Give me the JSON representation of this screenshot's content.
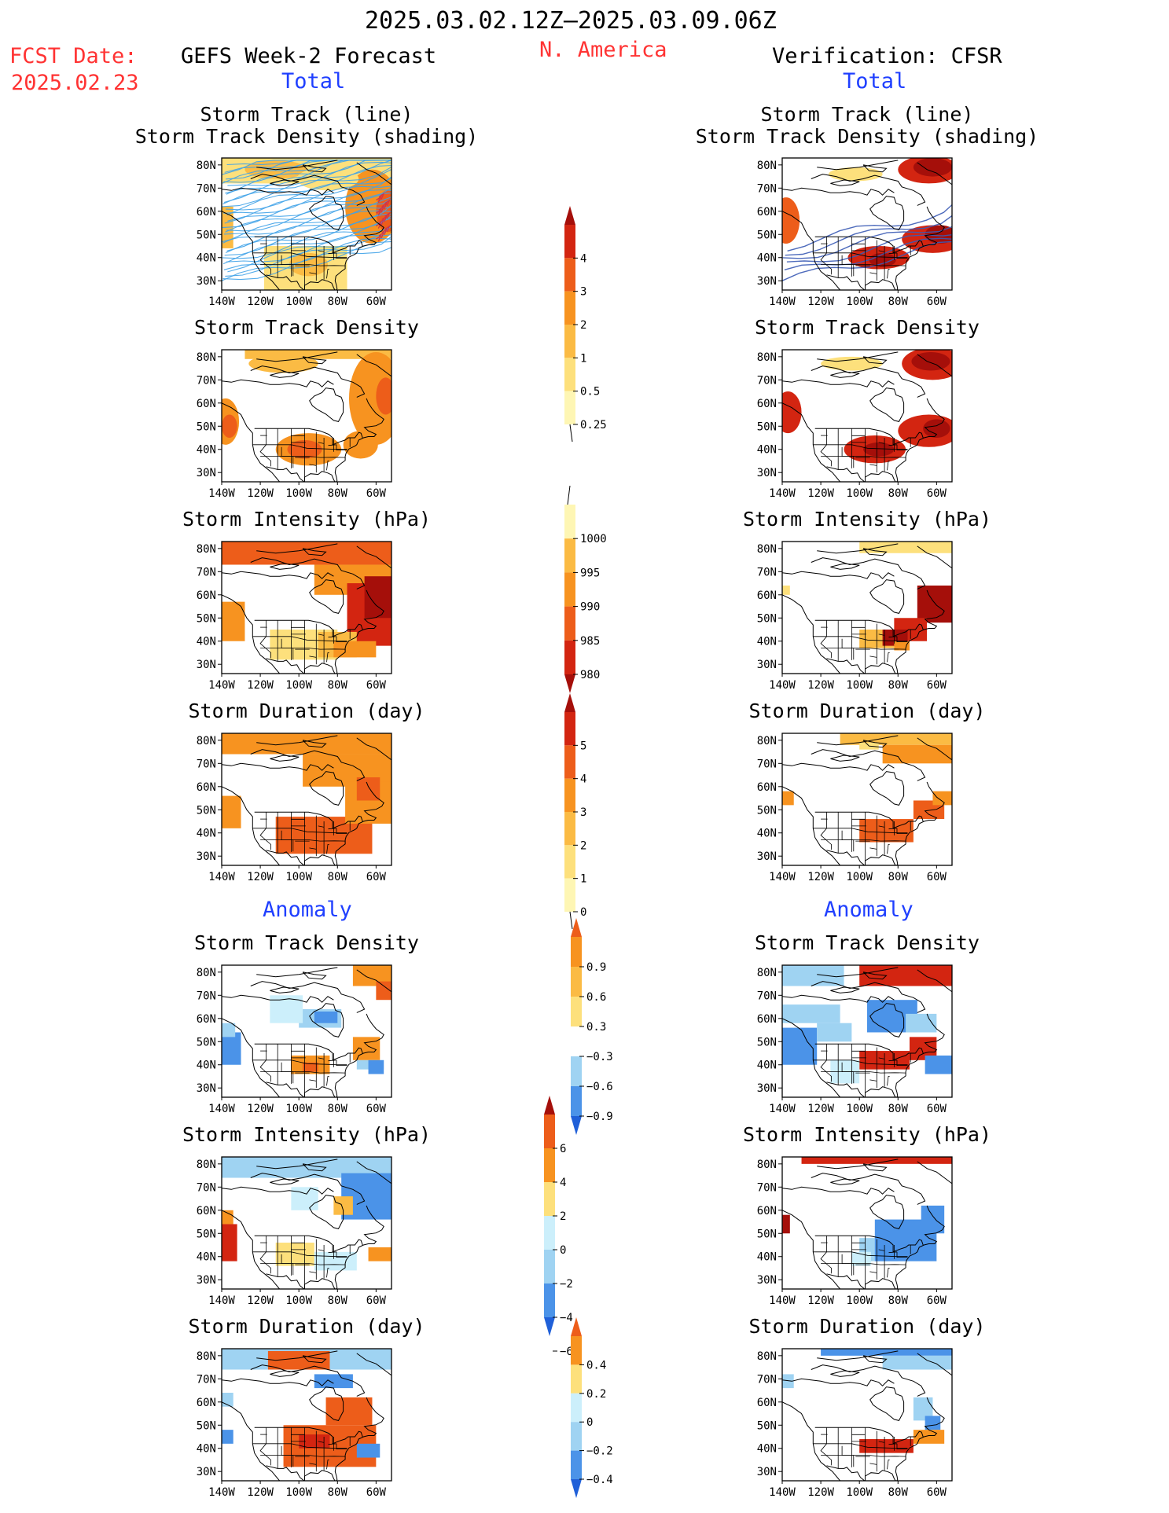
{
  "header": {
    "period": "2025.03.02.12Z–2025.03.09.06Z",
    "fcst_label": "FCST Date:",
    "fcst_date": "2025.02.23",
    "left_title": "GEFS Week-2 Forecast",
    "region": "N. America",
    "right_title": "Verification: CFSR",
    "total_label": "Total",
    "anomaly_label": "Anomaly"
  },
  "axes": {
    "lat_ticks": [
      "80N",
      "70N",
      "60N",
      "50N",
      "40N",
      "30N"
    ],
    "lon_ticks": [
      "140W",
      "120W",
      "100W",
      "80W",
      "60W"
    ]
  },
  "colors": {
    "yellow_light": "#fef6b4",
    "yellow": "#fde07c",
    "orange_light": "#fbbb44",
    "orange": "#f79320",
    "orange_dark": "#ed5d1a",
    "red": "#d32511",
    "red_dark": "#a50f0a",
    "blue_dark": "#2060d8",
    "blue": "#4b93e8",
    "blue_light": "#9fd3f2",
    "blue_pale": "#cceffb",
    "track_blue": "#3fa2e8",
    "track_dark": "#3b5bb5"
  },
  "chart_data": [
    {
      "type": "heatmap",
      "row": "total",
      "column": "forecast",
      "title": [
        "Storm Track (line)",
        "Storm Track Density (shading)"
      ],
      "field": "storm track density with storm track lines",
      "colorbar": "density"
    },
    {
      "type": "heatmap",
      "row": "total",
      "column": "verification",
      "title": [
        "Storm Track (line)",
        "Storm Track Density (shading)"
      ],
      "field": "storm track density with storm track lines",
      "colorbar": "density"
    },
    {
      "type": "heatmap",
      "row": "total",
      "column": "forecast",
      "title": [
        "Storm Track Density"
      ],
      "field": "storm track density",
      "colorbar": "density"
    },
    {
      "type": "heatmap",
      "row": "total",
      "column": "verification",
      "title": [
        "Storm Track Density"
      ],
      "field": "storm track density",
      "colorbar": "density"
    },
    {
      "type": "heatmap",
      "row": "total",
      "column": "forecast",
      "title": [
        "Storm Intensity (hPa)"
      ],
      "field": "storm intensity",
      "colorbar": "intensity"
    },
    {
      "type": "heatmap",
      "row": "total",
      "column": "verification",
      "title": [
        "Storm Intensity (hPa)"
      ],
      "field": "storm intensity",
      "colorbar": "intensity"
    },
    {
      "type": "heatmap",
      "row": "total",
      "column": "forecast",
      "title": [
        "Storm Duration (day)"
      ],
      "field": "storm duration",
      "colorbar": "duration"
    },
    {
      "type": "heatmap",
      "row": "total",
      "column": "verification",
      "title": [
        "Storm Duration (day)"
      ],
      "field": "storm duration",
      "colorbar": "duration"
    },
    {
      "type": "heatmap",
      "row": "anomaly",
      "column": "forecast",
      "title": [
        "Storm Track Density"
      ],
      "field": "storm track density anomaly",
      "colorbar": "density_anomaly"
    },
    {
      "type": "heatmap",
      "row": "anomaly",
      "column": "verification",
      "title": [
        "Storm Track Density"
      ],
      "field": "storm track density anomaly",
      "colorbar": "density_anomaly"
    },
    {
      "type": "heatmap",
      "row": "anomaly",
      "column": "forecast",
      "title": [
        "Storm Intensity (hPa)"
      ],
      "field": "storm intensity anomaly",
      "colorbar": "intensity_anomaly"
    },
    {
      "type": "heatmap",
      "row": "anomaly",
      "column": "verification",
      "title": [
        "Storm Intensity (hPa)"
      ],
      "field": "storm intensity anomaly",
      "colorbar": "intensity_anomaly"
    },
    {
      "type": "heatmap",
      "row": "anomaly",
      "column": "forecast",
      "title": [
        "Storm Duration (day)"
      ],
      "field": "storm duration anomaly",
      "colorbar": "duration_anomaly"
    },
    {
      "type": "heatmap",
      "row": "anomaly",
      "column": "verification",
      "title": [
        "Storm Duration (day)"
      ],
      "field": "storm duration anomaly",
      "colorbar": "duration_anomaly"
    }
  ],
  "colorbars": {
    "density": {
      "labels": [
        "4",
        "3",
        "2",
        "1",
        "0.5",
        "0.25"
      ],
      "colors": [
        "#a50f0a",
        "#d32511",
        "#ed5d1a",
        "#f79320",
        "#fbbb44",
        "#fde07c",
        "#fef6b4"
      ],
      "arrow_top": true,
      "arrow_bottom": false
    },
    "intensity": {
      "labels": [
        "1000",
        "995",
        "990",
        "985",
        "980"
      ],
      "colors": [
        "#fef6b4",
        "#fbbb44",
        "#f79320",
        "#ed5d1a",
        "#d32511",
        "#a50f0a"
      ],
      "arrow_top": false,
      "arrow_bottom": true
    },
    "duration": {
      "labels": [
        "5",
        "4",
        "3",
        "2",
        "1",
        "0"
      ],
      "colors": [
        "#a50f0a",
        "#d32511",
        "#ed5d1a",
        "#f79320",
        "#fbbb44",
        "#fde07c",
        "#fef6b4"
      ],
      "arrow_top": true,
      "arrow_bottom": false
    },
    "density_anomaly": {
      "labels": [
        "0.9",
        "0.6",
        "0.3",
        "−0.3",
        "−0.6",
        "−0.9"
      ],
      "colors": [
        "#ed5d1a",
        "#f79320",
        "#fbbb44",
        "#fde07c",
        "#ffffff",
        "#9fd3f2",
        "#4b93e8",
        "#2060d8"
      ],
      "arrow_top": true,
      "arrow_bottom": true
    },
    "intensity_anomaly": {
      "labels": [
        "6",
        "4",
        "2",
        "0",
        "−2",
        "−4",
        "−6"
      ],
      "colors": [
        "#a50f0a",
        "#ed5d1a",
        "#f79320",
        "#fde07c",
        "#cceffb",
        "#9fd3f2",
        "#4b93e8",
        "#2060d8"
      ],
      "arrow_top": true,
      "arrow_bottom": true
    },
    "duration_anomaly": {
      "labels": [
        "0.4",
        "0.2",
        "0",
        "−0.2",
        "−0.4"
      ],
      "colors": [
        "#ed5d1a",
        "#f79320",
        "#fde07c",
        "#cceffb",
        "#9fd3f2",
        "#4b93e8",
        "#2060d8"
      ],
      "arrow_top": true,
      "arrow_bottom": true
    }
  }
}
